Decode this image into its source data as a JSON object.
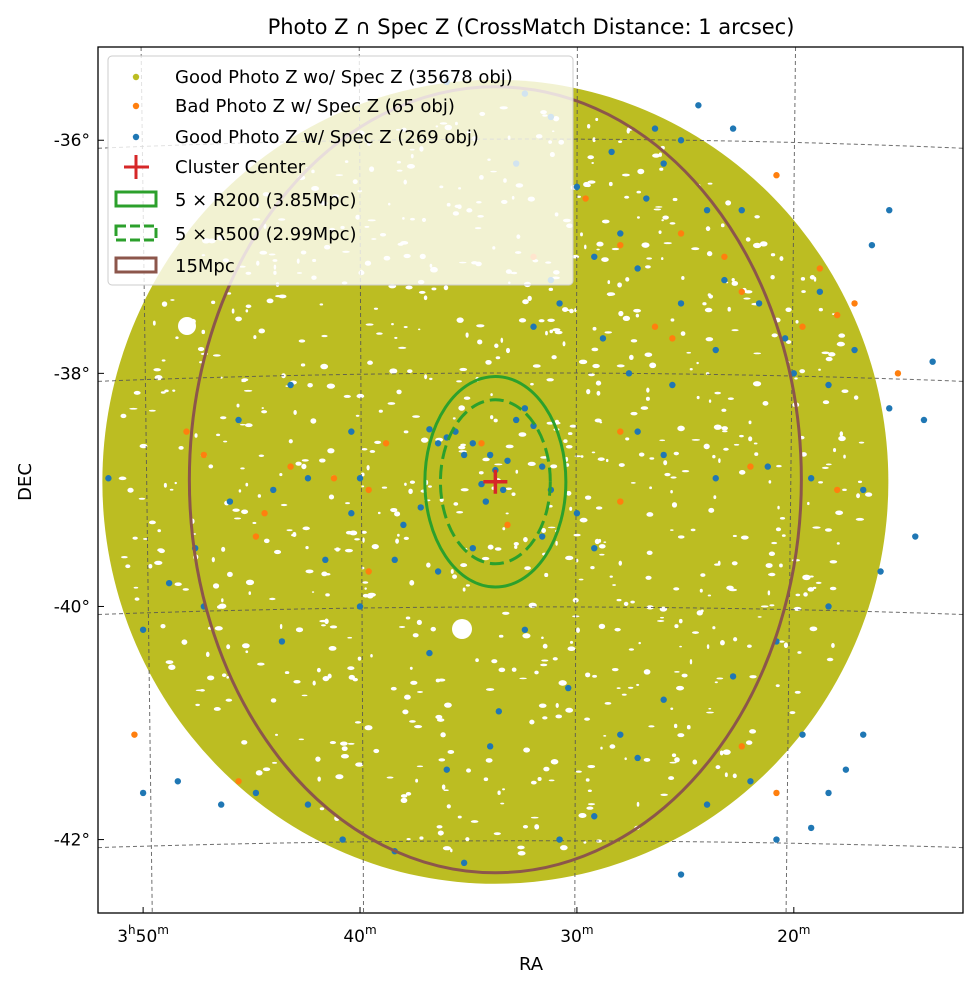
{
  "chart_data": {
    "type": "scatter",
    "title": "Photo Z ∩ Spec Z (CrossMatch Distance: 1 arcsec)",
    "xlabel": "RA",
    "ylabel": "DEC",
    "x_ticks": [
      {
        "value": 57.5,
        "h": "3",
        "m": "50"
      },
      {
        "value": 55.0,
        "h": "",
        "m": "40"
      },
      {
        "value": 52.5,
        "h": "",
        "m": "30"
      },
      {
        "value": 50.0,
        "h": "",
        "m": "20"
      }
    ],
    "y_ticks": [
      {
        "value": -36,
        "label": "-36°"
      },
      {
        "value": -38,
        "label": "-38°"
      },
      {
        "value": -40,
        "label": "-40°"
      },
      {
        "value": -42,
        "label": "-42°"
      }
    ],
    "x_unit_h": "h",
    "x_unit_m": "m",
    "xlim_deg": [
      58.02,
      48.05
    ],
    "ylim_deg": [
      -42.63,
      -35.2
    ],
    "x_axis_inverted": true,
    "grid": true,
    "legend_position": "upper-left",
    "field": {
      "center_ra": 53.44,
      "center_dec": -38.93,
      "radius_deg": 3.35
    },
    "series": [
      {
        "name": "Good Photo Z wo/ Spec Z (35678 obj)",
        "color": "#bcbd22",
        "marker": "dot",
        "count": 35678
      },
      {
        "name": "Bad Photo Z w/ Spec Z (65 obj)",
        "color": "#ff7f0e",
        "marker": "dot",
        "count": 65
      },
      {
        "name": "Good Photo Z w/ Spec Z (269 obj)",
        "color": "#1f77b4",
        "marker": "dot",
        "count": 269
      }
    ],
    "overlays": [
      {
        "name": "Cluster Center",
        "type": "plus",
        "color": "#d62728",
        "ra": 53.44,
        "dec": -38.93
      },
      {
        "name": "5 × R200 (3.85Mpc)",
        "type": "circle",
        "style": "solid",
        "color": "#2ca02c",
        "radius_deg": 0.86
      },
      {
        "name": "5 × R500 (2.99Mpc)",
        "type": "circle",
        "style": "dashed",
        "color": "#2ca02c",
        "radius_deg": 0.67
      },
      {
        "name": "15Mpc",
        "type": "circle",
        "style": "solid",
        "color": "#8c564b",
        "radius_deg": 3.36
      }
    ],
    "bad_points": [
      [
        54.7,
        -38.6
      ],
      [
        53.0,
        -37.0
      ],
      [
        52.4,
        -36.5
      ],
      [
        52.0,
        -36.9
      ],
      [
        51.6,
        -37.6
      ],
      [
        51.3,
        -36.8
      ],
      [
        50.8,
        -37.0
      ],
      [
        50.6,
        -37.3
      ],
      [
        50.2,
        -36.3
      ],
      [
        49.7,
        -37.1
      ],
      [
        49.9,
        -37.6
      ],
      [
        49.5,
        -37.5
      ],
      [
        49.3,
        -37.4
      ],
      [
        48.8,
        -38.0
      ],
      [
        52.0,
        -38.5
      ],
      [
        54.9,
        -39.0
      ],
      [
        55.3,
        -38.9
      ],
      [
        55.8,
        -38.8
      ],
      [
        56.2,
        -39.4
      ],
      [
        56.8,
        -38.7
      ],
      [
        57.0,
        -38.5
      ],
      [
        56.1,
        -39.2
      ],
      [
        53.3,
        -39.3
      ],
      [
        52.0,
        -39.1
      ],
      [
        50.5,
        -38.8
      ],
      [
        49.5,
        -39.0
      ],
      [
        57.6,
        -41.1
      ],
      [
        56.4,
        -41.5
      ],
      [
        50.6,
        -41.2
      ],
      [
        50.2,
        -41.6
      ],
      [
        51.4,
        -37.7
      ],
      [
        54.9,
        -39.7
      ],
      [
        53.6,
        -38.6
      ]
    ],
    "good_points": [
      [
        53.44,
        -38.83
      ],
      [
        53.3,
        -38.75
      ],
      [
        53.6,
        -38.95
      ],
      [
        53.5,
        -38.7
      ],
      [
        53.7,
        -38.6
      ],
      [
        53.9,
        -38.5
      ],
      [
        54.0,
        -38.55
      ],
      [
        54.1,
        -38.6
      ],
      [
        54.2,
        -38.48
      ],
      [
        53.8,
        -38.7
      ],
      [
        53.2,
        -38.4
      ],
      [
        53.1,
        -38.3
      ],
      [
        53.0,
        -38.45
      ],
      [
        52.9,
        -38.8
      ],
      [
        52.8,
        -39.0
      ],
      [
        53.35,
        -39.0
      ],
      [
        53.55,
        -39.1
      ],
      [
        54.3,
        -39.15
      ],
      [
        54.5,
        -39.3
      ],
      [
        54.6,
        -39.6
      ],
      [
        54.1,
        -39.7
      ],
      [
        53.7,
        -39.5
      ],
      [
        52.9,
        -39.4
      ],
      [
        52.5,
        -39.2
      ],
      [
        52.3,
        -39.5
      ],
      [
        55.0,
        -38.9
      ],
      [
        55.1,
        -39.2
      ],
      [
        55.4,
        -39.6
      ],
      [
        55.6,
        -38.9
      ],
      [
        56.0,
        -39.0
      ],
      [
        56.5,
        -39.1
      ],
      [
        56.9,
        -39.5
      ],
      [
        57.2,
        -39.8
      ],
      [
        57.9,
        -38.9
      ],
      [
        57.5,
        -40.2
      ],
      [
        56.8,
        -40.0
      ],
      [
        55.9,
        -40.3
      ],
      [
        55.0,
        -40.0
      ],
      [
        54.2,
        -40.4
      ],
      [
        53.4,
        -40.9
      ],
      [
        52.6,
        -40.7
      ],
      [
        52.0,
        -41.1
      ],
      [
        51.5,
        -40.8
      ],
      [
        50.7,
        -40.6
      ],
      [
        50.2,
        -40.3
      ],
      [
        49.6,
        -40.0
      ],
      [
        49.0,
        -39.7
      ],
      [
        48.6,
        -39.4
      ],
      [
        49.2,
        -39.0
      ],
      [
        49.8,
        -38.9
      ],
      [
        50.3,
        -38.8
      ],
      [
        50.9,
        -38.9
      ],
      [
        51.5,
        -38.7
      ],
      [
        51.8,
        -38.5
      ],
      [
        51.9,
        -38.0
      ],
      [
        52.2,
        -37.7
      ],
      [
        52.7,
        -37.4
      ],
      [
        53.0,
        -37.6
      ],
      [
        52.8,
        -37.2
      ],
      [
        52.3,
        -37.0
      ],
      [
        52.0,
        -36.8
      ],
      [
        51.7,
        -36.5
      ],
      [
        51.5,
        -36.2
      ],
      [
        51.3,
        -36.0
      ],
      [
        51.6,
        -35.9
      ],
      [
        52.1,
        -36.1
      ],
      [
        52.5,
        -36.4
      ],
      [
        51.0,
        -36.6
      ],
      [
        50.6,
        -36.6
      ],
      [
        50.8,
        -37.2
      ],
      [
        50.4,
        -37.4
      ],
      [
        50.1,
        -37.7
      ],
      [
        49.7,
        -37.3
      ],
      [
        49.3,
        -37.8
      ],
      [
        48.9,
        -38.3
      ],
      [
        48.5,
        -38.4
      ],
      [
        50.0,
        -38.0
      ],
      [
        49.6,
        -38.1
      ],
      [
        50.9,
        -37.8
      ],
      [
        51.3,
        -37.4
      ],
      [
        51.8,
        -37.1
      ],
      [
        51.4,
        -38.1
      ],
      [
        53.2,
        -36.2
      ],
      [
        53.1,
        -35.6
      ],
      [
        52.8,
        -35.8
      ],
      [
        51.1,
        -35.7
      ],
      [
        50.7,
        -35.9
      ],
      [
        55.1,
        -38.5
      ],
      [
        56.2,
        -41.6
      ],
      [
        56.6,
        -41.7
      ],
      [
        57.1,
        -41.5
      ],
      [
        57.5,
        -41.6
      ],
      [
        55.6,
        -41.7
      ],
      [
        55.2,
        -42.0
      ],
      [
        54.6,
        -42.1
      ],
      [
        53.8,
        -42.2
      ],
      [
        52.7,
        -42.0
      ],
      [
        51.3,
        -42.3
      ],
      [
        50.2,
        -42.0
      ],
      [
        49.6,
        -41.6
      ],
      [
        49.4,
        -41.4
      ],
      [
        49.2,
        -41.1
      ],
      [
        49.9,
        -41.1
      ],
      [
        50.5,
        -41.5
      ],
      [
        49.8,
        -41.9
      ],
      [
        51.0,
        -41.7
      ],
      [
        51.8,
        -41.3
      ],
      [
        53.5,
        -41.2
      ],
      [
        54.0,
        -41.4
      ],
      [
        52.3,
        -41.8
      ],
      [
        53.1,
        -40.2
      ],
      [
        55.8,
        -38.1
      ],
      [
        56.4,
        -38.4
      ],
      [
        48.4,
        -37.9
      ],
      [
        48.9,
        -36.6
      ],
      [
        49.1,
        -36.9
      ],
      [
        54.0,
        -35.5
      ]
    ]
  }
}
